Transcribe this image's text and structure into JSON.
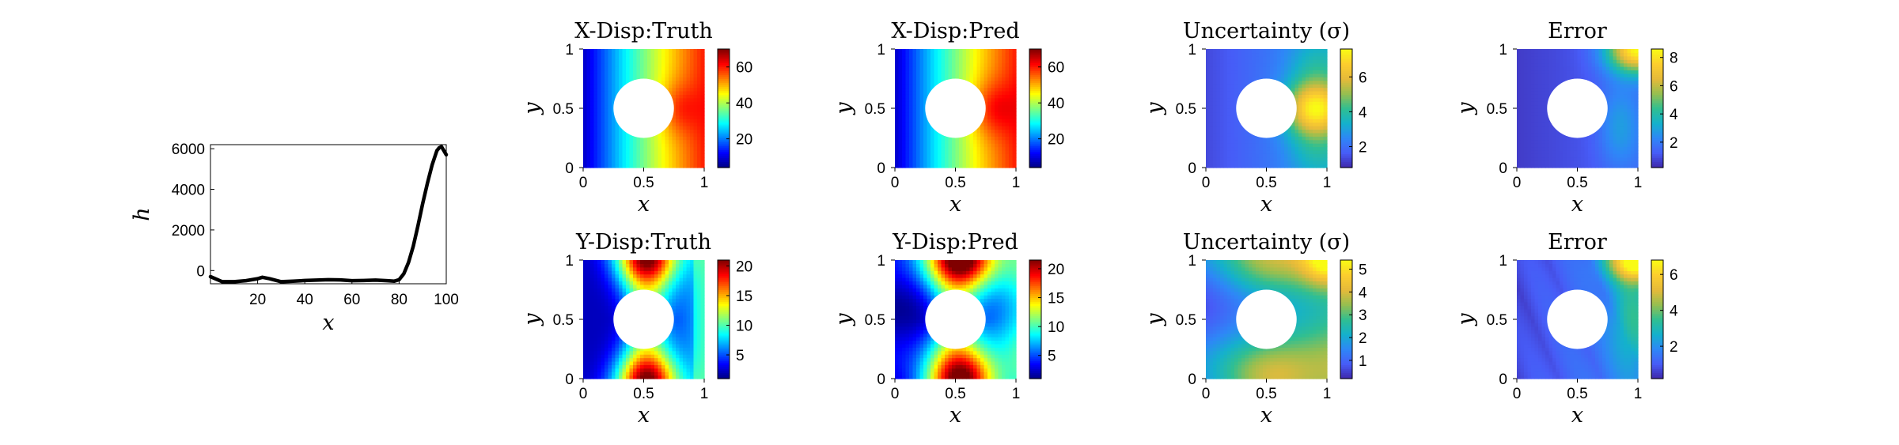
{
  "colors": {
    "background": "#ffffff",
    "axis": "#000000",
    "line": "#000000",
    "hole": "#ffffff"
  },
  "chart_data": [
    {
      "id": "h",
      "type": "line",
      "xlabel": "x",
      "ylabel": "h",
      "xlim": [
        0,
        100
      ],
      "ylim": [
        -650,
        6200
      ],
      "xticks": [
        20,
        40,
        60,
        80,
        100
      ],
      "yticks": [
        0,
        2000,
        4000,
        6000
      ],
      "xtick_labels": [
        "20",
        "40",
        "60",
        "80",
        "100"
      ],
      "ytick_labels": [
        "0",
        "2000",
        "4000",
        "6000"
      ],
      "grid": false,
      "series": [
        {
          "x": [
            0,
            5,
            10,
            15,
            20,
            22,
            25,
            30,
            35,
            40,
            45,
            50,
            55,
            60,
            65,
            70,
            75,
            78,
            80,
            82,
            84,
            86,
            88,
            90,
            92,
            94,
            96,
            97,
            98,
            99,
            100
          ],
          "values": [
            -300,
            -550,
            -550,
            -500,
            -400,
            -330,
            -400,
            -550,
            -520,
            -490,
            -470,
            -450,
            -460,
            -500,
            -490,
            -470,
            -500,
            -520,
            -450,
            -150,
            400,
            1200,
            2200,
            3300,
            4300,
            5200,
            5900,
            6050,
            6100,
            5900,
            5700
          ]
        }
      ]
    },
    {
      "id": "xt",
      "type": "heatmap",
      "field": "xtruth",
      "title": "X-Disp:Truth",
      "xlabel": "x",
      "ylabel": "y",
      "xlim": [
        0,
        1
      ],
      "ylim": [
        0,
        1
      ],
      "xtick_labels": [
        "0",
        "0.5",
        "1"
      ],
      "ytick_labels": [
        "0",
        "0.5",
        "1"
      ],
      "colormap": "jet",
      "clim": [
        4,
        70
      ],
      "colorbar_ticks": [
        20,
        40,
        60
      ],
      "colorbar_labels": [
        "20",
        "40",
        "60"
      ],
      "hole": {
        "center": [
          0.5,
          0.5
        ],
        "radius": 0.25
      }
    },
    {
      "id": "xp",
      "type": "heatmap",
      "field": "xpred",
      "title": "X-Disp:Pred",
      "xlabel": "x",
      "ylabel": "y",
      "xlim": [
        0,
        1
      ],
      "ylim": [
        0,
        1
      ],
      "xtick_labels": [
        "0",
        "0.5",
        "1"
      ],
      "ytick_labels": [
        "0",
        "0.5",
        "1"
      ],
      "colormap": "jet",
      "clim": [
        4,
        70
      ],
      "colorbar_ticks": [
        20,
        40,
        60
      ],
      "colorbar_labels": [
        "20",
        "40",
        "60"
      ],
      "hole": {
        "center": [
          0.5,
          0.5
        ],
        "radius": 0.25
      }
    },
    {
      "id": "xu",
      "type": "heatmap",
      "field": "xunc",
      "title": "Uncertainty (σ)",
      "xlabel": "x",
      "ylabel": "y",
      "xlim": [
        0,
        1
      ],
      "ylim": [
        0,
        1
      ],
      "xtick_labels": [
        "0",
        "0.5",
        "1"
      ],
      "ytick_labels": [
        "0",
        "0.5",
        "1"
      ],
      "colormap": "parula",
      "clim": [
        0.8,
        7.6
      ],
      "colorbar_ticks": [
        2,
        4,
        6
      ],
      "colorbar_labels": [
        "2",
        "4",
        "6"
      ],
      "hole": {
        "center": [
          0.5,
          0.5
        ],
        "radius": 0.25
      }
    },
    {
      "id": "xe",
      "type": "heatmap",
      "field": "xerr",
      "title": "Error",
      "xlabel": "x",
      "ylabel": "y",
      "xlim": [
        0,
        1
      ],
      "ylim": [
        0,
        1
      ],
      "xtick_labels": [
        "0",
        "0.5",
        "1"
      ],
      "ytick_labels": [
        "0",
        "0.5",
        "1"
      ],
      "colormap": "parula",
      "clim": [
        0.2,
        8.6
      ],
      "colorbar_ticks": [
        2,
        4,
        6,
        8
      ],
      "colorbar_labels": [
        "2",
        "4",
        "6",
        "8"
      ],
      "hole": {
        "center": [
          0.5,
          0.5
        ],
        "radius": 0.25
      }
    },
    {
      "id": "yt",
      "type": "heatmap",
      "field": "ytruth",
      "title": "Y-Disp:Truth",
      "xlabel": "x",
      "ylabel": "y",
      "xlim": [
        0,
        1
      ],
      "ylim": [
        0,
        1
      ],
      "xtick_labels": [
        "0",
        "0.5",
        "1"
      ],
      "ytick_labels": [
        "0",
        "0.5",
        "1"
      ],
      "colormap": "jet",
      "clim": [
        1,
        21
      ],
      "colorbar_ticks": [
        5,
        10,
        15,
        20
      ],
      "colorbar_labels": [
        "5",
        "10",
        "15",
        "20"
      ],
      "hole": {
        "center": [
          0.5,
          0.5
        ],
        "radius": 0.25
      }
    },
    {
      "id": "yp",
      "type": "heatmap",
      "field": "ypred",
      "title": "Y-Disp:Pred",
      "xlabel": "x",
      "ylabel": "y",
      "xlim": [
        0,
        1
      ],
      "ylim": [
        0,
        1
      ],
      "xtick_labels": [
        "0",
        "0.5",
        "1"
      ],
      "ytick_labels": [
        "0",
        "0.5",
        "1"
      ],
      "colormap": "jet",
      "clim": [
        1,
        21.5
      ],
      "colorbar_ticks": [
        5,
        10,
        15,
        20
      ],
      "colorbar_labels": [
        "5",
        "10",
        "15",
        "20"
      ],
      "hole": {
        "center": [
          0.5,
          0.5
        ],
        "radius": 0.25
      }
    },
    {
      "id": "yu",
      "type": "heatmap",
      "field": "yunc",
      "title": "Uncertainty (σ)",
      "xlabel": "x",
      "ylabel": "y",
      "xlim": [
        0,
        1
      ],
      "ylim": [
        0,
        1
      ],
      "xtick_labels": [
        "0",
        "0.5",
        "1"
      ],
      "ytick_labels": [
        "0",
        "0.5",
        "1"
      ],
      "colormap": "parula",
      "clim": [
        0.2,
        5.4
      ],
      "colorbar_ticks": [
        1,
        2,
        3,
        4,
        5
      ],
      "colorbar_labels": [
        "1",
        "2",
        "3",
        "4",
        "5"
      ],
      "hole": {
        "center": [
          0.5,
          0.5
        ],
        "radius": 0.25
      }
    },
    {
      "id": "ye",
      "type": "heatmap",
      "field": "yerr",
      "title": "Error",
      "xlabel": "x",
      "ylabel": "y",
      "xlim": [
        0,
        1
      ],
      "ylim": [
        0,
        1
      ],
      "xtick_labels": [
        "0",
        "0.5",
        "1"
      ],
      "ytick_labels": [
        "0",
        "0.5",
        "1"
      ],
      "colormap": "parula",
      "clim": [
        0.2,
        6.8
      ],
      "colorbar_ticks": [
        2,
        4,
        6
      ],
      "colorbar_labels": [
        "2",
        "4",
        "6"
      ],
      "hole": {
        "center": [
          0.5,
          0.5
        ],
        "radius": 0.25
      }
    }
  ]
}
